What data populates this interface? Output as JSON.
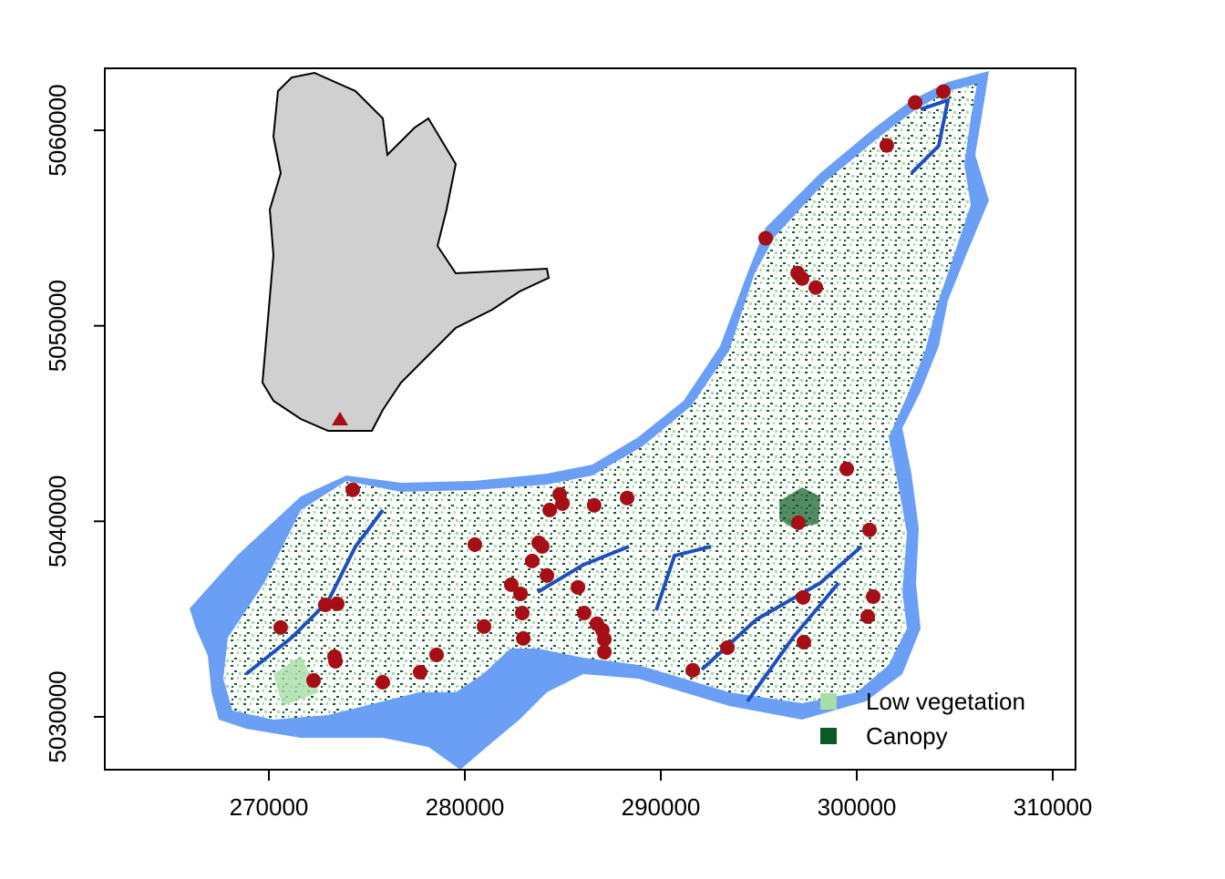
{
  "chart_data": {
    "type": "map",
    "xlim": [
      261628,
      311163
    ],
    "ylim": [
      5027296,
      5063170
    ],
    "xticks": [
      270000,
      280000,
      290000,
      300000,
      310000
    ],
    "yticks": [
      5030000,
      5040000,
      5050000,
      5060000
    ],
    "legend_position": "bottom-right",
    "legend": [
      {
        "name": "Low vegetation",
        "color": "#a8dca8"
      },
      {
        "name": "Canopy",
        "color": "#0b5a23"
      }
    ],
    "point_color": "#a50f15",
    "x": [
      304419,
      302980,
      301530,
      295350,
      296980,
      297210,
      297910,
      299490,
      297020,
      300650,
      300840,
      300560,
      297260,
      297300,
      293400,
      291630,
      288280,
      286600,
      284840,
      284980,
      284330,
      280510,
      283770,
      283950,
      283440,
      284190,
      282370,
      282840,
      285770,
      282930,
      286090,
      286740,
      287020,
      287120,
      287120,
      282980,
      280980,
      274280,
      270600,
      272880,
      273490,
      273350,
      273400,
      272280,
      275810,
      277720,
      278560
    ],
    "y": [
      5061981,
      5061420,
      5059230,
      5054480,
      5052700,
      5052420,
      5051960,
      5042680,
      5039930,
      5039560,
      5036150,
      5035130,
      5036110,
      5033820,
      5033540,
      5032380,
      5041190,
      5040820,
      5041380,
      5040910,
      5040580,
      5038810,
      5038900,
      5038720,
      5037970,
      5037230,
      5036760,
      5036290,
      5036620,
      5035310,
      5035310,
      5034760,
      5034430,
      5033960,
      5033310,
      5034010,
      5034620,
      5041610,
      5034570,
      5035730,
      5035780,
      5033080,
      5032840,
      5031860,
      5031770,
      5032280,
      5033170
    ]
  }
}
